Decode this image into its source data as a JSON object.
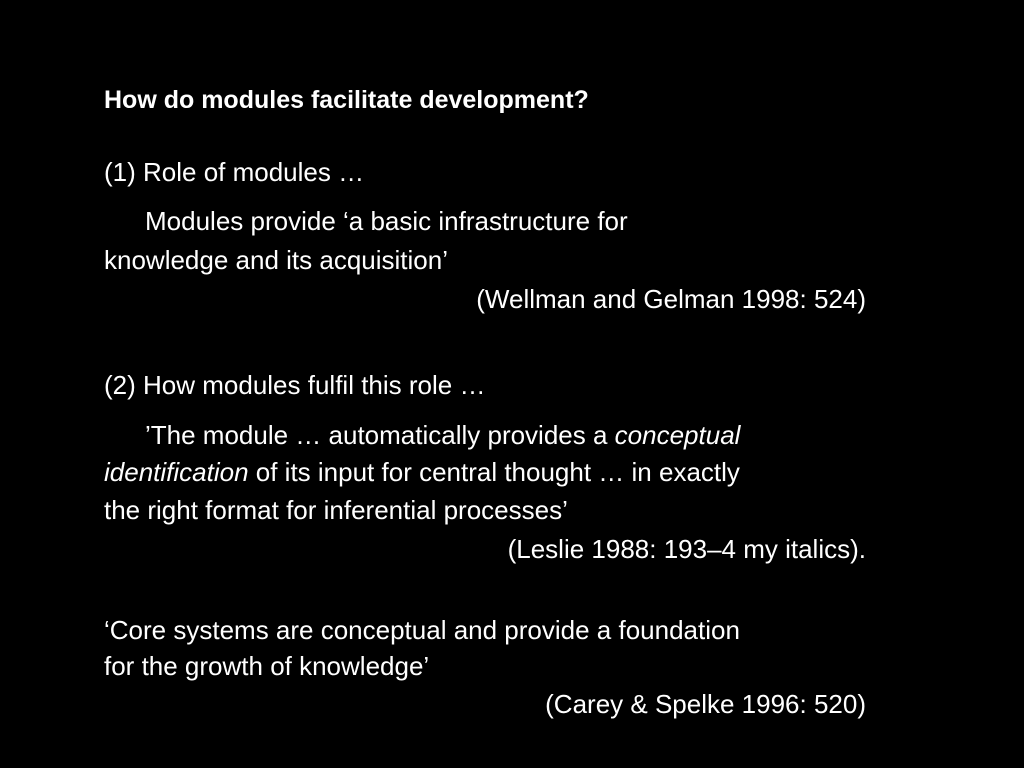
{
  "slide": {
    "title": "How do modules facilitate development?",
    "section1": {
      "heading": "(1) Role of modules …",
      "quote_line1": "Modules provide ‘a basic infrastructure for",
      "quote_line2": "knowledge and its acquisition’",
      "citation": "(Wellman and Gelman 1998: 524)"
    },
    "section2": {
      "heading": "(2) How modules fulfil this role …",
      "quote_line1_pre": "’The module … automatically provides a ",
      "quote_line1_italic": "conceptual",
      "quote_line2_italic": "identification",
      "quote_line2_post": " of its input for central thought … in exactly",
      "quote_line3": "the right format for inferential processes’",
      "citation": "(Leslie 1988: 193–4 my italics)."
    },
    "section3": {
      "quote_line1": "‘Core systems are conceptual and provide a foundation",
      "quote_line2": "for the growth of knowledge’",
      "citation": "(Carey & Spelke 1996: 520)"
    }
  }
}
